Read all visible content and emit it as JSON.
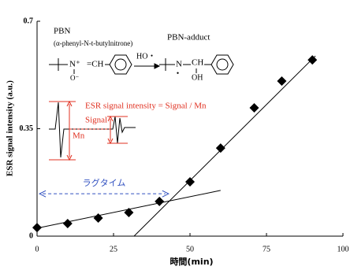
{
  "chart_data": {
    "type": "scatter",
    "xlabel": "時間(min)",
    "ylabel": "ESR signal intensity (a.u.)",
    "x": [
      0,
      10,
      20,
      30,
      40,
      50,
      60,
      71,
      80,
      90
    ],
    "values": [
      0.028,
      0.041,
      0.059,
      0.077,
      0.113,
      0.177,
      0.287,
      0.418,
      0.505,
      0.574
    ],
    "color": "#000000",
    "fit_lines": [
      {
        "x": [
          0,
          60
        ],
        "values": [
          0.026,
          0.149
        ]
      },
      {
        "x": [
          31.7,
          91
        ],
        "values": [
          0,
          0.587
        ]
      }
    ],
    "xlim": [
      0,
      100
    ],
    "xticks": [
      0,
      25,
      50,
      75,
      100
    ],
    "ylim": [
      0,
      0.7
    ],
    "yticks": [
      0,
      0.35,
      0.7
    ],
    "lag_time": {
      "label": "ラグタイム",
      "x": [
        0.8,
        43
      ],
      "y": 0.138
    },
    "inset": {
      "pbn": "PBN",
      "pbn_name": "(α-phenyl-N-t-butylnitrone)",
      "adduct": "PBN-adduct",
      "reagent": "HO・",
      "formula": "ESR signal intensity = Signal / Mn",
      "signal": "Signal",
      "mn": "Mn",
      "atoms": [
        "N⁺",
        "=CH",
        "O⁻",
        "N",
        "・",
        "CH",
        "OH"
      ]
    }
  }
}
